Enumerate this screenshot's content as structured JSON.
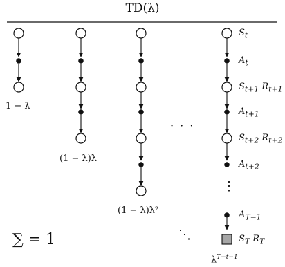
{
  "title": "TD(λ)",
  "state_labels": {
    "s_t": "S",
    "a_t": "A",
    "s_t1_r": "S",
    "a_t1": "A",
    "s_t2_r": "S",
    "a_t2": "A",
    "a_T1": "A",
    "s_T_r": "S"
  },
  "weights": {
    "col1": "1 − λ",
    "col2": "(1 − λ)λ",
    "col3": "(1 − λ)λ²",
    "last": "λ"
  },
  "sum_label": "∑ = 1",
  "ellipsis_h": "· · ·",
  "ellipsis_v": "⋮",
  "ellipsis_diag": "⋱"
}
